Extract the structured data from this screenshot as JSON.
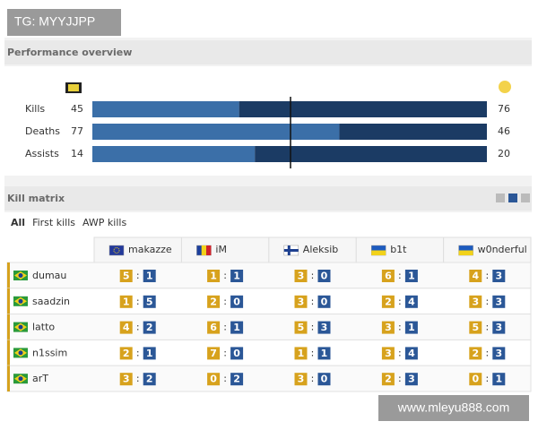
{
  "watermark_top": "TG: MYYJJPP",
  "watermark_bottom": "www.mleyu888.com",
  "performance": {
    "title": "Performance overview",
    "rows": [
      {
        "label": "Kills",
        "left": 45,
        "right": 76
      },
      {
        "label": "Deaths",
        "left": 77,
        "right": 46
      },
      {
        "label": "Assists",
        "left": 14,
        "right": 20
      }
    ]
  },
  "kill_matrix": {
    "title": "Kill matrix",
    "tabs": [
      "All",
      "First kills",
      "AWP kills"
    ],
    "separator": ":",
    "columns": [
      "makazze",
      "iM",
      "Aleksib",
      "b1t",
      "w0nderful"
    ],
    "rows": [
      {
        "player": "dumau",
        "cells": [
          [
            5,
            1
          ],
          [
            1,
            1
          ],
          [
            3,
            0
          ],
          [
            6,
            1
          ],
          [
            4,
            3
          ]
        ]
      },
      {
        "player": "saadzin",
        "cells": [
          [
            1,
            5
          ],
          [
            2,
            0
          ],
          [
            3,
            0
          ],
          [
            2,
            4
          ],
          [
            3,
            3
          ]
        ]
      },
      {
        "player": "latto",
        "cells": [
          [
            4,
            2
          ],
          [
            6,
            1
          ],
          [
            5,
            3
          ],
          [
            3,
            1
          ],
          [
            5,
            3
          ]
        ]
      },
      {
        "player": "n1ssim",
        "cells": [
          [
            2,
            1
          ],
          [
            7,
            0
          ],
          [
            1,
            1
          ],
          [
            3,
            4
          ],
          [
            2,
            3
          ]
        ]
      },
      {
        "player": "arT",
        "cells": [
          [
            3,
            2
          ],
          [
            0,
            2
          ],
          [
            3,
            0
          ],
          [
            2,
            3
          ],
          [
            0,
            1
          ]
        ]
      }
    ]
  }
}
